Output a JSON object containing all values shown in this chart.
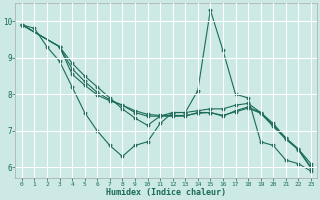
{
  "xlabel": "Humidex (Indice chaleur)",
  "bg_color": "#cce9e5",
  "line_color": "#1a6b5a",
  "grid_color": "#ffffff",
  "xlim": [
    -0.5,
    23.5
  ],
  "ylim": [
    5.7,
    10.5
  ],
  "yticks": [
    6,
    7,
    8,
    9,
    10
  ],
  "xticks": [
    0,
    1,
    2,
    3,
    4,
    5,
    6,
    7,
    8,
    9,
    10,
    11,
    12,
    13,
    14,
    15,
    16,
    17,
    18,
    19,
    20,
    21,
    22,
    23
  ],
  "lines": [
    {
      "x": [
        0,
        1,
        2,
        3,
        4,
        5,
        6,
        7,
        8,
        9,
        10,
        11,
        12,
        13,
        14,
        15,
        16,
        17,
        18,
        19,
        20,
        21,
        22,
        23
      ],
      "y": [
        9.9,
        9.8,
        9.3,
        8.9,
        8.2,
        7.5,
        7.0,
        6.6,
        6.3,
        6.6,
        6.7,
        7.2,
        7.5,
        7.5,
        8.1,
        10.3,
        9.2,
        8.0,
        7.9,
        6.7,
        6.6,
        6.2,
        6.1,
        5.9
      ]
    },
    {
      "x": [
        0,
        3,
        4,
        5,
        6,
        7,
        8,
        9,
        10,
        11,
        12,
        13,
        14,
        15,
        16,
        17,
        18,
        19,
        20,
        21,
        22,
        23
      ],
      "y": [
        9.9,
        9.3,
        8.85,
        8.5,
        8.2,
        7.9,
        7.6,
        7.35,
        7.15,
        7.4,
        7.5,
        7.5,
        7.55,
        7.6,
        7.6,
        7.7,
        7.75,
        7.5,
        7.2,
        6.8,
        6.5,
        6.1
      ]
    },
    {
      "x": [
        0,
        3,
        4,
        5,
        6,
        7,
        8,
        9,
        10,
        11,
        12,
        13,
        14,
        15,
        16,
        17,
        18,
        19,
        20,
        21,
        22,
        23
      ],
      "y": [
        9.9,
        9.3,
        8.7,
        8.35,
        8.05,
        7.85,
        7.7,
        7.5,
        7.4,
        7.4,
        7.4,
        7.4,
        7.5,
        7.5,
        7.4,
        7.55,
        7.65,
        7.5,
        7.15,
        6.8,
        6.5,
        6.0
      ]
    },
    {
      "x": [
        0,
        3,
        4,
        5,
        6,
        7,
        8,
        9,
        10,
        11,
        12,
        13,
        14,
        15,
        16,
        17,
        18,
        19,
        20,
        21,
        22,
        23
      ],
      "y": [
        9.9,
        9.3,
        8.55,
        8.25,
        7.98,
        7.82,
        7.7,
        7.55,
        7.45,
        7.42,
        7.42,
        7.42,
        7.48,
        7.5,
        7.42,
        7.52,
        7.62,
        7.48,
        7.12,
        6.77,
        6.48,
        5.98
      ]
    }
  ]
}
